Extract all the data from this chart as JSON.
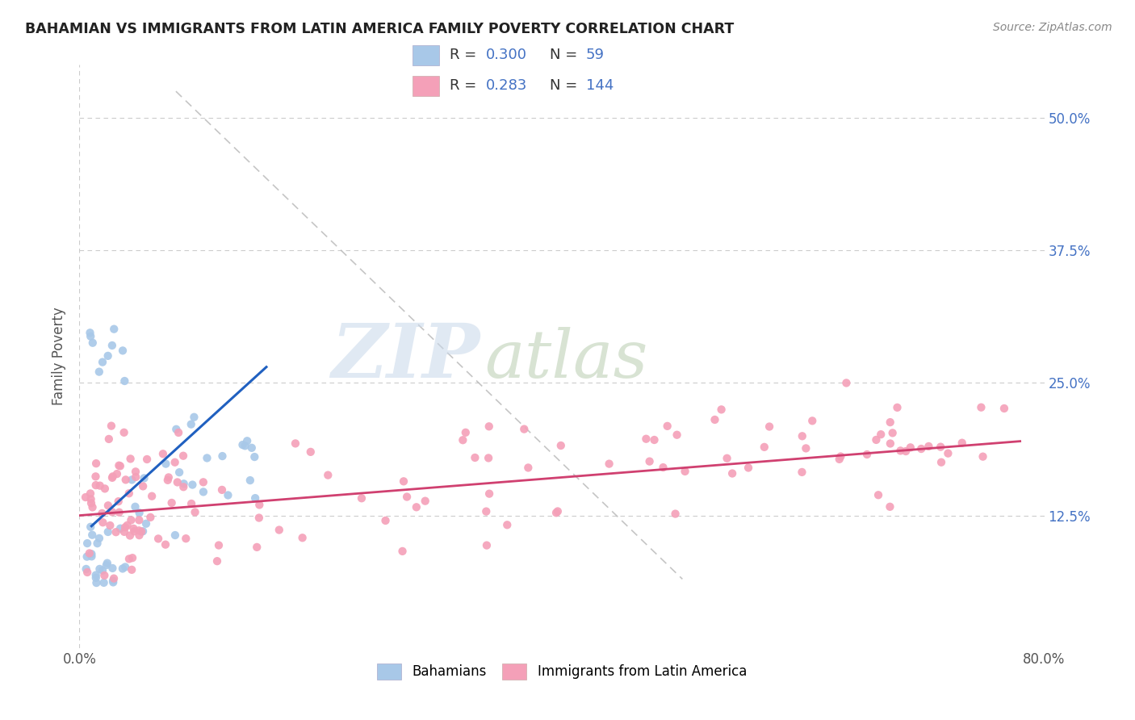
{
  "title": "BAHAMIAN VS IMMIGRANTS FROM LATIN AMERICA FAMILY POVERTY CORRELATION CHART",
  "source": "Source: ZipAtlas.com",
  "ylabel": "Family Poverty",
  "xlim": [
    0.0,
    0.8
  ],
  "ylim": [
    0.0,
    0.55
  ],
  "color_blue": "#a8c8e8",
  "color_pink": "#f4a0b8",
  "color_blue_line": "#2060c0",
  "color_pink_line": "#d04070",
  "color_text_blue": "#4472c4",
  "color_grid": "#cccccc",
  "color_diag": "#bbbbbb",
  "background_color": "#ffffff",
  "blue_line_x": [
    0.01,
    0.155
  ],
  "blue_line_y": [
    0.115,
    0.265
  ],
  "pink_line_x": [
    0.0,
    0.78
  ],
  "pink_line_y": [
    0.125,
    0.195
  ],
  "diag_line_x": [
    0.08,
    0.5
  ],
  "diag_line_y": [
    0.525,
    0.065
  ],
  "watermark_zip_color": "#c5d5e5",
  "watermark_atlas_color": "#c8d8c0"
}
